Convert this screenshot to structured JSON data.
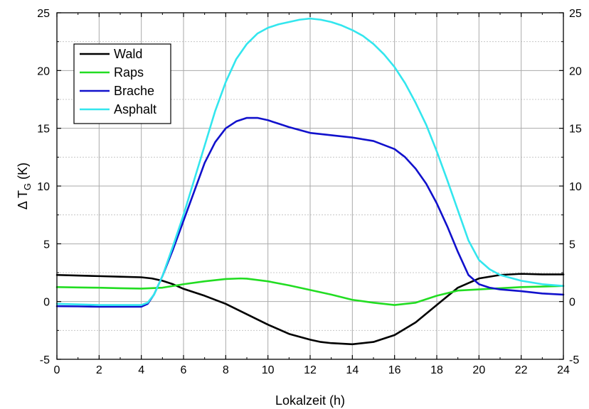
{
  "chart_data": {
    "type": "line",
    "title": "",
    "xlabel": "Lokalzeit (h)",
    "ylabel": {
      "prefix": "Δ T",
      "subscript": "G",
      "suffix": " (K)"
    },
    "xlim": [
      0,
      24
    ],
    "ylim": [
      -5,
      25
    ],
    "xticks": [
      "0",
      "2",
      "4",
      "6",
      "8",
      "10",
      "12",
      "14",
      "16",
      "18",
      "20",
      "22",
      "24"
    ],
    "yticks": [
      "-5",
      "0",
      "5",
      "10",
      "15",
      "20",
      "25"
    ],
    "right_yticks": [
      "-5",
      "0",
      "5",
      "10",
      "15",
      "20",
      "25"
    ],
    "grid": {
      "major": true,
      "minor_horizontal": true
    },
    "legend_position": "top-left",
    "series": [
      {
        "name": "Wald",
        "color": "#000000",
        "x": [
          0,
          1,
          2,
          3,
          4,
          4.5,
          5,
          5.5,
          6,
          7,
          8,
          9,
          10,
          11,
          12,
          12.5,
          13,
          14,
          15,
          16,
          17,
          18,
          19,
          20,
          21,
          22,
          23,
          24
        ],
        "y": [
          2.3,
          2.25,
          2.2,
          2.15,
          2.1,
          2.0,
          1.8,
          1.5,
          1.1,
          0.5,
          -0.2,
          -1.1,
          -2.0,
          -2.8,
          -3.3,
          -3.5,
          -3.6,
          -3.7,
          -3.5,
          -2.9,
          -1.8,
          -0.3,
          1.2,
          2.0,
          2.3,
          2.4,
          2.35,
          2.35
        ]
      },
      {
        "name": "Raps",
        "color": "#22dd22",
        "x": [
          0,
          1,
          2,
          3,
          4,
          5,
          6,
          7,
          8,
          8.7,
          9,
          10,
          11,
          12,
          13,
          14,
          15,
          16,
          17,
          18,
          19,
          20,
          21,
          22,
          23,
          24
        ],
        "y": [
          1.25,
          1.22,
          1.2,
          1.15,
          1.12,
          1.2,
          1.5,
          1.75,
          1.95,
          2.0,
          1.98,
          1.75,
          1.4,
          1.0,
          0.6,
          0.15,
          -0.1,
          -0.3,
          -0.1,
          0.5,
          0.95,
          1.05,
          1.15,
          1.25,
          1.3,
          1.35
        ]
      },
      {
        "name": "Brache",
        "color": "#1111cc",
        "x": [
          0,
          1,
          2,
          3,
          4,
          4.3,
          4.6,
          5,
          5.5,
          6,
          6.5,
          7,
          7.5,
          8,
          8.5,
          9,
          9.5,
          10,
          10.5,
          11,
          12,
          13,
          14,
          15,
          16,
          16.5,
          17,
          17.5,
          18,
          18.5,
          19,
          19.5,
          20,
          20.5,
          21,
          22,
          23,
          24
        ],
        "y": [
          -0.4,
          -0.42,
          -0.45,
          -0.45,
          -0.45,
          -0.2,
          0.6,
          2.2,
          4.5,
          7.0,
          9.5,
          12.0,
          13.8,
          15.0,
          15.6,
          15.9,
          15.9,
          15.7,
          15.4,
          15.1,
          14.6,
          14.4,
          14.2,
          13.9,
          13.2,
          12.5,
          11.5,
          10.2,
          8.5,
          6.5,
          4.3,
          2.3,
          1.5,
          1.2,
          1.05,
          0.9,
          0.7,
          0.6
        ]
      },
      {
        "name": "Asphalt",
        "color": "#33e6ee",
        "x": [
          0,
          1,
          2,
          3,
          4,
          4.3,
          4.6,
          5,
          5.5,
          6,
          6.5,
          7,
          7.5,
          8,
          8.5,
          9,
          9.5,
          10,
          10.5,
          11,
          11.5,
          12,
          12.5,
          13,
          13.5,
          14,
          14.5,
          15,
          15.5,
          16,
          16.5,
          17,
          17.5,
          18,
          18.5,
          19,
          19.5,
          20,
          20.5,
          21,
          22,
          23,
          24
        ],
        "y": [
          -0.2,
          -0.25,
          -0.3,
          -0.3,
          -0.3,
          -0.1,
          0.6,
          2.2,
          4.8,
          7.5,
          10.5,
          13.5,
          16.5,
          19.0,
          21.0,
          22.3,
          23.2,
          23.7,
          24.0,
          24.2,
          24.4,
          24.5,
          24.4,
          24.2,
          23.9,
          23.5,
          23.0,
          22.3,
          21.4,
          20.3,
          18.9,
          17.2,
          15.3,
          13.0,
          10.5,
          7.9,
          5.3,
          3.6,
          2.8,
          2.3,
          1.8,
          1.5,
          1.35
        ]
      }
    ]
  }
}
